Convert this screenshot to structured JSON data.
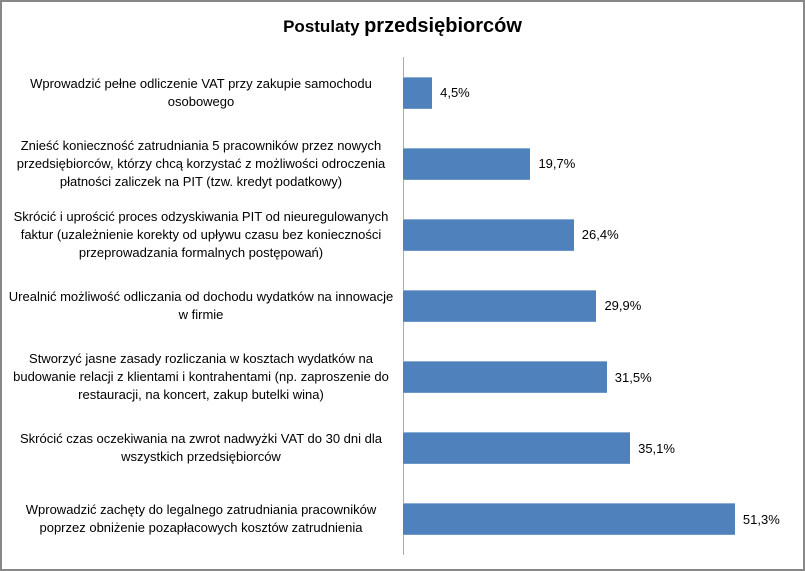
{
  "window": {
    "background": "#FFFFFF",
    "border_color": "#878787"
  },
  "title": {
    "part1": "Postulaty",
    "part2": "przedsiębiorców",
    "full": "Postulaty przedsiębiorców"
  },
  "chart_data": {
    "type": "bar",
    "orientation": "horizontal",
    "title": "Postulaty przedsiębiorców",
    "categories": [
      "Wprowadzić pełne odliczenie VAT przy zakupie samochodu osobowego",
      "Znieść konieczność zatrudniania 5 pracowników przez nowych przedsiębiorców, którzy chcą korzystać z możliwości odroczenia płatności zaliczek na PIT (tzw. kredyt podatkowy)",
      "Skrócić i uprościć proces odzyskiwania PIT od nieuregulowanych faktur (uzależnienie korekty od upływu czasu bez konieczności przeprowadzania formalnych postępowań)",
      "Urealnić możliwość odliczania od dochodu wydatków na innowacje w firmie",
      "Stworzyć jasne zasady rozliczania w kosztach wydatków na budowanie relacji z klientami i kontrahentami (np. zaproszenie do restauracji, na koncert, zakup butelki wina)",
      "Skrócić czas oczekiwania na zwrot nadwyżki VAT do 30 dni dla wszystkich przedsiębiorców",
      "Wprowadzić zachęty do legalnego zatrudniania pracowników poprzez obniżenie pozapłacowych kosztów zatrudnienia"
    ],
    "values": [
      4.5,
      19.7,
      26.4,
      29.9,
      31.5,
      35.1,
      51.3
    ],
    "value_labels": [
      "4,5%",
      "19,7%",
      "26,4%",
      "29,9%",
      "31,5%",
      "35,1%",
      "51,3%"
    ],
    "xlabel": "",
    "ylabel": "",
    "xlim": [
      0,
      60
    ],
    "grid": false,
    "legend": false,
    "bar_color": "#4F81BD",
    "axis_line_color": "#ABABAB"
  }
}
